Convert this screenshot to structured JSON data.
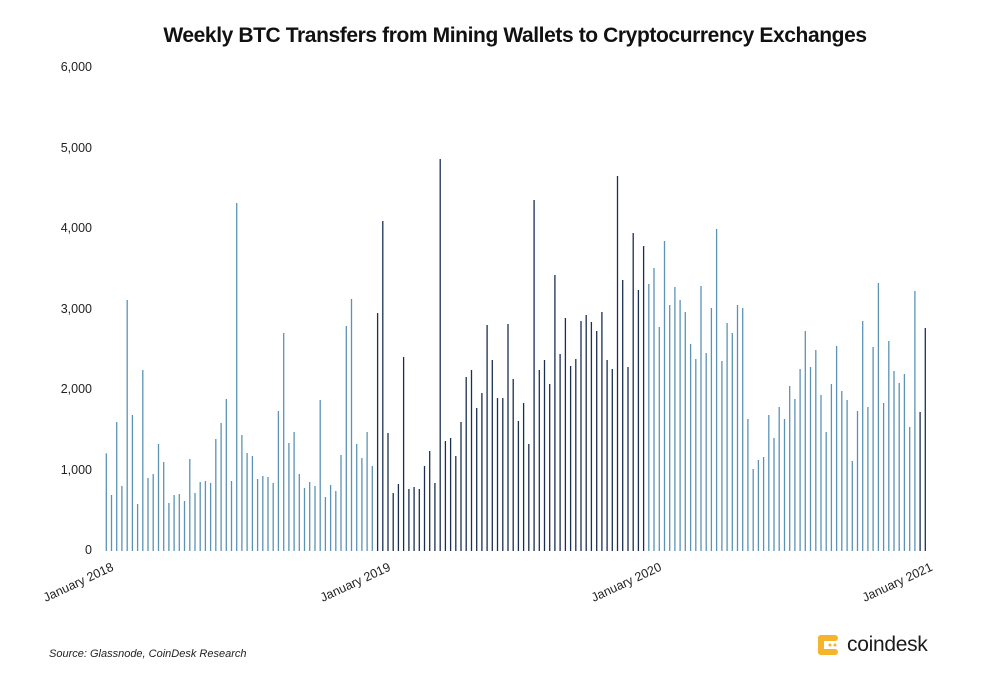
{
  "chart_data": {
    "type": "bar",
    "title": "Weekly BTC Transfers from Mining Wallets to Cryptocurrency Exchanges",
    "xlabel": "",
    "ylabel": "",
    "ylim": [
      0,
      6000
    ],
    "y_ticks": [
      "0",
      "1,000",
      "2,000",
      "3,000",
      "4,000",
      "5,000",
      "6,000"
    ],
    "y_tick_values": [
      0,
      1000,
      2000,
      3000,
      4000,
      5000,
      6000
    ],
    "x_tick_labels": [
      "January 2018",
      "January 2019",
      "January 2020",
      "January 2021"
    ],
    "x_tick_indices": [
      0,
      53,
      105,
      157
    ],
    "grid": false,
    "legend": "none",
    "colors": {
      "light": "#5b93b5",
      "dark": "#1b2f52"
    },
    "values": [
      1213,
      696,
      1602,
      807,
      3118,
      1689,
      584,
      2248,
      907,
      957,
      1329,
      1106,
      596,
      696,
      708,
      621,
      1143,
      720,
      857,
      870,
      845,
      1391,
      1590,
      1888,
      870,
      4323,
      1441,
      1217,
      1180,
      895,
      932,
      919,
      845,
      1739,
      2708,
      1342,
      1478,
      957,
      783,
      857,
      807,
      1876,
      671,
      820,
      745,
      1193,
      2795,
      3130,
      1329,
      1155,
      1478,
      1056,
      2957,
      4099,
      1466,
      720,
      832,
      2410,
      770,
      795,
      770,
      1056,
      1242,
      845,
      4870,
      1366,
      1404,
      1180,
      1602,
      2161,
      2248,
      1776,
      1963,
      2807,
      2373,
      1901,
      1901,
      2820,
      2137,
      1615,
      1839,
      1329,
      4360,
      2248,
      2373,
      2075,
      3429,
      2447,
      2894,
      2298,
      2385,
      2857,
      2932,
      2845,
      2733,
      2969,
      2373,
      2261,
      4658,
      3366,
      2286,
      3950,
      3242,
      3789,
      3317,
      3516,
      2783,
      3851,
      3056,
      3280,
      3118,
      2969,
      2571,
      2385,
      3292,
      2460,
      3019,
      4000,
      2360,
      2832,
      2708,
      3056,
      3019,
      1640,
      1019,
      1131,
      1168,
      1689,
      1404,
      1789,
      1640,
      2050,
      1888,
      2261,
      2733,
      2286,
      2497,
      1938,
      1478,
      2075,
      2547,
      1988,
      1876,
      1118,
      1739,
      2857,
      1789,
      2534,
      3329,
      1839,
      2609,
      2236,
      2087,
      2199,
      1540,
      3230,
      1727,
      2770
    ],
    "dark_ranges": [
      [
        52,
        103
      ],
      [
        156,
        157
      ]
    ]
  },
  "footer": {
    "source": "Source: Glassnode, CoinDesk Research",
    "brand": "coindesk"
  },
  "brand_color": "#f4b52c"
}
